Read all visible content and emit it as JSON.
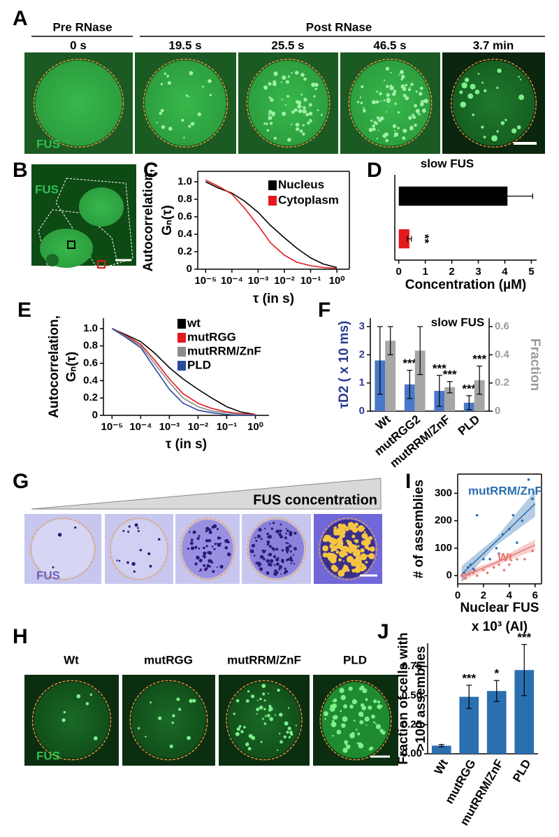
{
  "panels": {
    "A": {
      "label": "A",
      "pre": "Pre RNase",
      "post": "Post RNase",
      "times": [
        "0 s",
        "19.5 s",
        "25.5 s",
        "46.5 s",
        "3.7 min"
      ],
      "stain": "FUS"
    },
    "B": {
      "label": "B",
      "stain": "FUS"
    },
    "G": {
      "label": "G",
      "gradient": "FUS concentration",
      "stain": "FUS"
    },
    "H": {
      "label": "H",
      "conditions": [
        "Wt",
        "mutRGG",
        "mutRRM/ZnF",
        "PLD"
      ],
      "stain": "FUS"
    }
  },
  "chart_data": [
    {
      "panel_label": "C",
      "type": "line",
      "ylabel": [
        "Autocorrelation,",
        "Gₙ(τ)"
      ],
      "xlabel": "τ (in s)",
      "log_x": true,
      "x": [
        1e-05,
        3e-05,
        0.0001,
        0.0003,
        0.001,
        0.003,
        0.01,
        0.03,
        0.1,
        0.3,
        1
      ],
      "series": [
        {
          "name": "Nucleus",
          "color": "#000000",
          "values": [
            1.0,
            0.93,
            0.87,
            0.78,
            0.65,
            0.5,
            0.36,
            0.24,
            0.13,
            0.06,
            0.02
          ]
        },
        {
          "name": "Cytoplasm",
          "color": "#e3191c",
          "values": [
            1.02,
            0.95,
            0.86,
            0.7,
            0.5,
            0.3,
            0.16,
            0.08,
            0.04,
            0.02,
            0.01
          ]
        }
      ],
      "xlim": [
        5e-06,
        3
      ],
      "xticks": [
        {
          "value": 1e-05,
          "label": "10⁻⁵"
        },
        {
          "value": 0.0001,
          "label": "10⁻⁴"
        },
        {
          "value": 0.001,
          "label": "10⁻³"
        },
        {
          "value": 0.01,
          "label": "10⁻²"
        },
        {
          "value": 0.1,
          "label": "10⁻¹"
        },
        {
          "value": 1,
          "label": "10⁰"
        }
      ],
      "ylim": [
        0,
        1.12
      ],
      "yticks": [
        0,
        0.2,
        0.4,
        0.6,
        0.8,
        {
          "value": 1,
          "label": "1.0"
        }
      ],
      "legend": "upper right"
    },
    {
      "panel_label": "D",
      "type": "hbar",
      "title": "slow FUS",
      "xlabel": "Concentration (µM)",
      "values": [
        4.1,
        0.4
      ],
      "errors": [
        0.95,
        0.08
      ],
      "colors": [
        "#000000",
        "#e3191c"
      ],
      "annotations": [
        null,
        "**"
      ],
      "xlim": [
        -0.15,
        5.2
      ],
      "xticks": [
        0,
        1,
        2,
        3,
        4,
        5
      ]
    },
    {
      "panel_label": "E",
      "type": "line",
      "ylabel": [
        "Autocorrelation,",
        "Gₙ(τ)"
      ],
      "xlabel": "τ (in s)",
      "log_x": true,
      "x": [
        1e-05,
        3e-05,
        0.0001,
        0.0003,
        0.001,
        0.003,
        0.01,
        0.03,
        0.1,
        0.3,
        1
      ],
      "series": [
        {
          "name": "wt",
          "color": "#000000",
          "values": [
            1.0,
            0.93,
            0.85,
            0.72,
            0.55,
            0.42,
            0.3,
            0.2,
            0.1,
            0.04,
            0.01
          ]
        },
        {
          "name": "mutRGG",
          "color": "#e3191c",
          "values": [
            1.0,
            0.92,
            0.82,
            0.64,
            0.42,
            0.25,
            0.14,
            0.08,
            0.04,
            0.02,
            0.01
          ]
        },
        {
          "name": "mutRRM/ZnF",
          "color": "#8c8c8c",
          "values": [
            1.0,
            0.91,
            0.8,
            0.6,
            0.38,
            0.2,
            0.1,
            0.05,
            0.03,
            0.01,
            0
          ]
        },
        {
          "name": "PLD",
          "color": "#2b4a9c",
          "values": [
            1.0,
            0.9,
            0.78,
            0.55,
            0.3,
            0.14,
            0.06,
            0.03,
            0.01,
            0,
            0
          ]
        }
      ],
      "xlim": [
        5e-06,
        3
      ],
      "xticks": [
        {
          "value": 1e-05,
          "label": "10⁻⁵"
        },
        {
          "value": 0.0001,
          "label": "10⁻⁴"
        },
        {
          "value": 0.001,
          "label": "10⁻³"
        },
        {
          "value": 0.01,
          "label": "10⁻²"
        },
        {
          "value": 0.1,
          "label": "10⁻¹"
        },
        {
          "value": 1,
          "label": "10⁰"
        }
      ],
      "ylim": [
        0,
        1.12
      ],
      "yticks": [
        0,
        0.2,
        0.4,
        0.6,
        0.8,
        {
          "value": 1,
          "label": "1.0"
        }
      ],
      "legend": "upper right"
    },
    {
      "panel_label": "F",
      "type": "bar",
      "title": "slow FUS",
      "ylabel": "τD2 ( x 10 ms)",
      "y2label": "Fraction",
      "categories": [
        "Wt",
        "mutRGG2",
        "mutRRM/ZnF",
        "PLD"
      ],
      "series": [
        {
          "color": "#4a78c8",
          "values": [
            1.8,
            0.95,
            0.72,
            0.3
          ],
          "errors": [
            1.2,
            0.5,
            0.55,
            0.25
          ],
          "annotations": [
            null,
            "***",
            "***",
            "***"
          ]
        },
        {
          "color": "#a6a6a6",
          "axis": "y2",
          "values": [
            0.5,
            0.43,
            0.17,
            0.22
          ],
          "errors": [
            0.1,
            0.17,
            0.04,
            0.1
          ],
          "annotations": [
            null,
            null,
            "***",
            "***"
          ]
        }
      ],
      "ylim": [
        0,
        3.3
      ],
      "yticks": [
        0,
        1,
        2,
        3
      ],
      "y2lim": [
        0,
        0.66
      ],
      "y2ticks": [
        0,
        0.2,
        0.4,
        0.6
      ]
    },
    {
      "panel_label": "I",
      "type": "scatter",
      "ylabel": "# of assemblies",
      "xlabel": [
        "Nuclear FUS",
        "x 10³ (AI)"
      ],
      "series": [
        {
          "name": "mutRRM/ZnF",
          "color": "#2a6fb0",
          "x": [
            0.5,
            0.8,
            1,
            1.3,
            1.5,
            2,
            2.5,
            3,
            3.5,
            4,
            4.3,
            4.6,
            5,
            5.5,
            5.8,
            1.2,
            3.2
          ],
          "values": [
            10,
            30,
            40,
            20,
            220,
            60,
            60,
            100,
            150,
            170,
            220,
            120,
            200,
            350,
            280,
            25,
            80
          ],
          "fit_x": [
            0.3,
            3,
            6
          ],
          "fit": [
            5,
            125,
            262
          ],
          "fit_low": [
            -25,
            110,
            215
          ],
          "fit_high": [
            35,
            140,
            310
          ]
        },
        {
          "name": "Wt",
          "color": "#e8766f",
          "x": [
            0.3,
            0.6,
            0.9,
            1.2,
            1.5,
            2,
            2.3,
            2.8,
            3.2,
            3.6,
            4,
            4.6,
            5.2,
            5.8
          ],
          "values": [
            0,
            -10,
            5,
            10,
            0,
            20,
            10,
            30,
            40,
            20,
            40,
            60,
            60,
            90
          ],
          "fit_x": [
            0.3,
            3,
            6
          ],
          "fit": [
            -5,
            48,
            112
          ],
          "fit_low": [
            -20,
            40,
            92
          ],
          "fit_high": [
            10,
            56,
            132
          ]
        }
      ],
      "xlim": [
        0,
        6.5
      ],
      "xticks": [
        0,
        2,
        4,
        6
      ],
      "ylim": [
        -30,
        370
      ],
      "yticks": [
        0,
        100,
        200,
        300
      ]
    },
    {
      "panel_label": "J",
      "type": "bar",
      "ylabel": [
        "Fraction of cells with",
        ">100 assemblies"
      ],
      "categories": [
        "Wt",
        "mutRGG",
        "mutRRM/ZnF",
        "PLD"
      ],
      "color": "#2a6fb0",
      "values": [
        0.07,
        0.49,
        0.54,
        0.72
      ],
      "errors": [
        0.01,
        0.1,
        0.09,
        0.22
      ],
      "annotations": [
        null,
        "***",
        "*",
        "***"
      ],
      "ylim": [
        0,
        0.95
      ],
      "yticks": [
        {
          "value": 0,
          "label": "0.00"
        },
        {
          "value": 0.25,
          "label": "0.25"
        },
        {
          "value": 0.5,
          "label": "0.50"
        },
        {
          "value": 0.75,
          "label": "0.75"
        }
      ]
    }
  ]
}
